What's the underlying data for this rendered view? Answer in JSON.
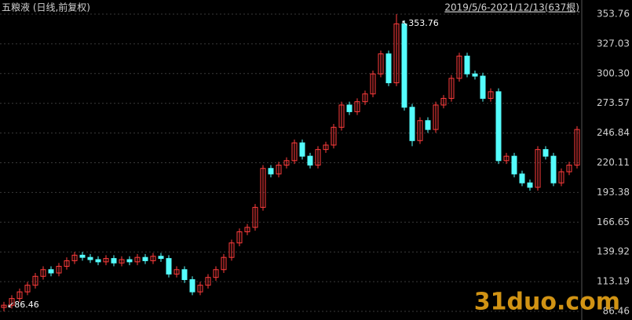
{
  "chart_data": {
    "type": "candlestick",
    "title": "五粮液 (日线,前复权)",
    "range_label": "2019/5/6-2021/12/13(637根)",
    "annotations": [
      {
        "text": "↖353.76",
        "value": 353.76
      },
      {
        "text": "↙86.46",
        "value": 86.46
      }
    ],
    "watermark": "31duo.com",
    "up_color": "#ff3c3c",
    "down_color": "#54fcfc",
    "ylim": [
      86.46,
      353.76
    ],
    "yticks": [
      353.76,
      327.03,
      {
        "value": 300.3,
        "label": "300.30"
      },
      273.57,
      246.84,
      220.11,
      193.38,
      166.65,
      139.92,
      113.19,
      86.46
    ],
    "grid": true,
    "open": [
      90,
      92,
      98,
      104,
      110,
      118,
      124,
      121,
      127,
      132,
      137,
      135,
      133,
      131,
      134,
      130,
      133,
      131,
      135,
      132,
      136,
      134,
      120,
      124,
      115,
      104,
      110,
      117,
      124,
      135,
      148,
      158,
      162,
      180,
      215,
      210,
      218,
      222,
      238,
      226,
      218,
      232,
      236,
      252,
      272,
      266,
      275,
      282,
      300,
      318,
      292,
      345,
      270,
      240,
      258,
      250,
      272,
      278,
      296,
      316,
      300,
      298,
      278,
      284,
      222,
      226,
      210,
      202,
      198,
      232,
      226,
      202,
      212,
      218
    ],
    "high": [
      95,
      101,
      107,
      113,
      121,
      127,
      127,
      130,
      135,
      140,
      140,
      138,
      136,
      137,
      137,
      136,
      136,
      138,
      138,
      139,
      139,
      137,
      127,
      127,
      118,
      113,
      120,
      127,
      138,
      151,
      161,
      165,
      183,
      218,
      218,
      221,
      225,
      241,
      241,
      229,
      235,
      239,
      255,
      275,
      275,
      278,
      285,
      303,
      321,
      321,
      353.76,
      348,
      273,
      261,
      261,
      275,
      281,
      299,
      319,
      319,
      303,
      301,
      287,
      287,
      229,
      229,
      213,
      205,
      235,
      235,
      229,
      215,
      221,
      253
    ],
    "low": [
      86.46,
      89,
      95,
      101,
      107,
      115,
      118,
      118,
      124,
      129,
      132,
      130,
      128,
      128,
      127,
      127,
      128,
      128,
      129,
      129,
      131,
      117,
      117,
      112,
      101,
      101,
      107,
      114,
      121,
      132,
      145,
      155,
      159,
      177,
      207,
      207,
      215,
      219,
      223,
      215,
      215,
      229,
      233,
      249,
      263,
      263,
      272,
      279,
      297,
      289,
      289,
      267,
      235,
      237,
      247,
      247,
      269,
      275,
      293,
      297,
      295,
      275,
      275,
      219,
      219,
      207,
      199,
      195,
      195,
      223,
      199,
      199,
      209,
      215
    ],
    "close": [
      92,
      98,
      104,
      110,
      118,
      124,
      121,
      127,
      132,
      137,
      135,
      133,
      131,
      134,
      130,
      133,
      131,
      135,
      132,
      136,
      134,
      120,
      124,
      115,
      104,
      110,
      117,
      124,
      135,
      148,
      158,
      162,
      180,
      215,
      210,
      218,
      222,
      238,
      226,
      218,
      232,
      236,
      252,
      272,
      266,
      275,
      282,
      300,
      318,
      292,
      345,
      270,
      240,
      258,
      250,
      272,
      278,
      296,
      316,
      300,
      298,
      278,
      284,
      222,
      226,
      210,
      202,
      198,
      232,
      226,
      202,
      212,
      218,
      250
    ]
  }
}
